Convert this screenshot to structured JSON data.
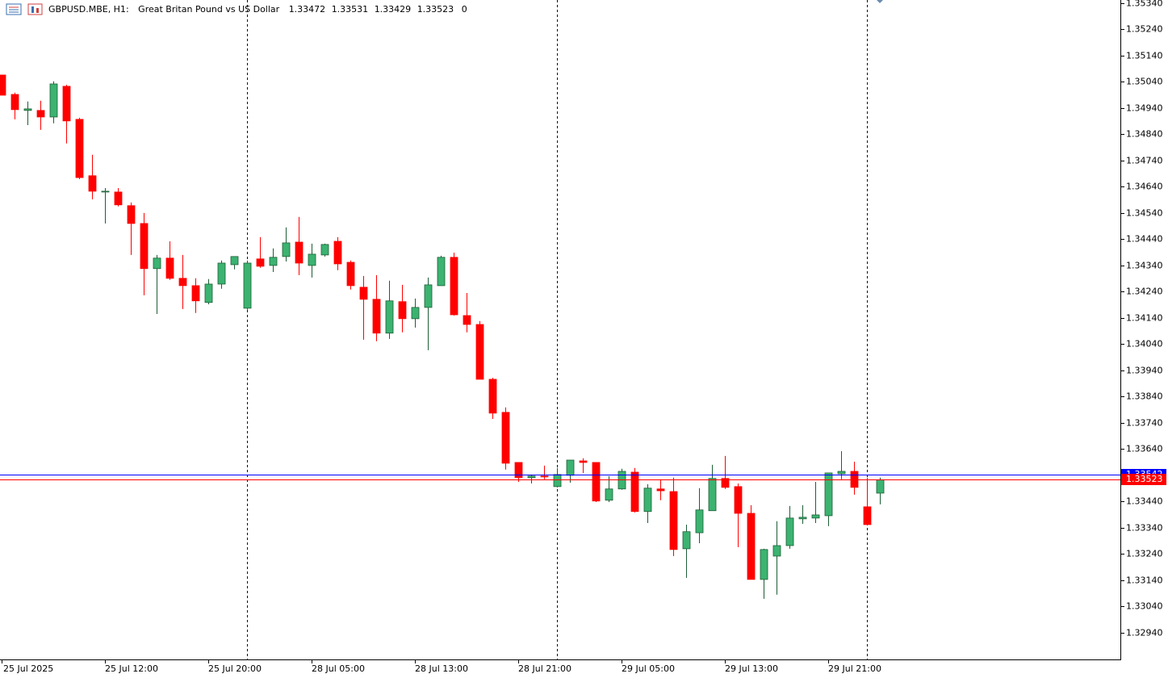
{
  "chart_data": {
    "type": "candlestick",
    "symbol": "GBPUSD.MBE, H1:",
    "description": "Great Britan Pound vs US Dollar",
    "header_suffix": "0",
    "categories": [
      "25 Jul 2025",
      null,
      null,
      null,
      null,
      null,
      null,
      null,
      "25 Jul 12:00",
      null,
      null,
      null,
      null,
      null,
      null,
      null,
      "25 Jul 20:00",
      null,
      null,
      null,
      null,
      null,
      null,
      null,
      "28 Jul 05:00",
      null,
      null,
      null,
      null,
      null,
      null,
      null,
      "28 Jul 13:00",
      null,
      null,
      null,
      null,
      null,
      null,
      null,
      "28 Jul 21:00",
      null,
      null,
      null,
      null,
      null,
      null,
      null,
      "29 Jul 05:00",
      null,
      null,
      null,
      null,
      null,
      null,
      null,
      "29 Jul 13:00",
      null,
      null,
      null,
      null,
      null,
      null,
      null,
      "29 Jul 21:00",
      null,
      null,
      null,
      null
    ],
    "open": [
      1.35066,
      1.34992,
      1.34931,
      1.34931,
      1.34906,
      1.35023,
      1.34897,
      1.34682,
      1.3462,
      1.3462,
      1.34568,
      1.345,
      1.34328,
      1.34368,
      1.34291,
      1.34263,
      1.34199,
      1.34269,
      1.34343,
      1.34177,
      1.34365,
      1.3434,
      1.34374,
      1.34429,
      1.3434,
      1.3438,
      1.34432,
      1.34352,
      1.34257,
      1.34211,
      1.34082,
      1.34202,
      1.34137,
      1.3418,
      1.34263,
      1.34371,
      1.34149,
      1.34115,
      1.33906,
      1.3378,
      1.33589,
      1.33531,
      1.33537,
      1.33497,
      1.3354,
      1.33595,
      1.33589,
      1.33445,
      1.33488,
      1.33552,
      1.33402,
      1.33488,
      1.33478,
      1.3326,
      1.33321,
      1.33405,
      1.33528,
      1.33497,
      1.33395,
      1.33143,
      1.33232,
      1.33272,
      1.33374,
      1.33377,
      1.33386,
      1.33546,
      1.33555,
      1.3342,
      1.33472
    ],
    "high": [
      1.35066,
      1.34999,
      1.34965,
      1.34968,
      1.35042,
      1.35029,
      1.34903,
      1.34762,
      1.34635,
      1.34635,
      1.3458,
      1.3454,
      1.3438,
      1.34432,
      1.3438,
      1.34291,
      1.34288,
      1.34359,
      1.34374,
      1.34359,
      1.34448,
      1.34405,
      1.34485,
      1.34525,
      1.34423,
      1.34423,
      1.34448,
      1.34359,
      1.343,
      1.34303,
      1.34282,
      1.34266,
      1.34214,
      1.34294,
      1.34377,
      1.34389,
      1.34235,
      1.34128,
      1.33912,
      1.33799,
      1.33589,
      1.33543,
      1.33577,
      1.33568,
      1.33598,
      1.33605,
      1.33589,
      1.33537,
      1.33565,
      1.33568,
      1.33506,
      1.33525,
      1.33531,
      1.33352,
      1.33491,
      1.3358,
      1.33614,
      1.33509,
      1.33426,
      1.3326,
      1.33365,
      1.33423,
      1.33426,
      1.33515,
      1.33549,
      1.33632,
      1.33592,
      1.33531,
      1.33531
    ],
    "low": [
      1.34989,
      1.34897,
      1.34875,
      1.34857,
      1.34882,
      1.34805,
      1.34669,
      1.34592,
      1.345,
      1.34565,
      1.3438,
      1.34226,
      1.34155,
      1.34285,
      1.34174,
      1.34159,
      1.34192,
      1.34251,
      1.34325,
      1.34171,
      1.34331,
      1.34315,
      1.34355,
      1.34303,
      1.34294,
      1.34374,
      1.34322,
      1.34248,
      1.34057,
      1.34051,
      1.3406,
      1.34085,
      1.34103,
      1.34017,
      1.34263,
      1.34149,
      1.34085,
      1.33906,
      1.33755,
      1.33562,
      1.33515,
      1.33509,
      1.33525,
      1.33494,
      1.33512,
      1.33549,
      1.33438,
      1.33438,
      1.33485,
      1.33398,
      1.33358,
      1.33445,
      1.33232,
      1.33149,
      1.33281,
      1.33405,
      1.33488,
      1.33266,
      1.33143,
      1.33069,
      1.33085,
      1.3326,
      1.33355,
      1.33358,
      1.33346,
      1.33525,
      1.33466,
      1.33349,
      1.33429
    ],
    "close": [
      1.34989,
      1.34934,
      1.34937,
      1.34906,
      1.35032,
      1.34891,
      1.34675,
      1.34623,
      1.34623,
      1.34571,
      1.345,
      1.34328,
      1.34368,
      1.34291,
      1.34263,
      1.34205,
      1.34269,
      1.34349,
      1.34374,
      1.34349,
      1.34337,
      1.34371,
      1.34426,
      1.34349,
      1.34383,
      1.3442,
      1.34346,
      1.34263,
      1.34211,
      1.34082,
      1.34205,
      1.34137,
      1.3418,
      1.34266,
      1.34371,
      1.34152,
      1.34115,
      1.33906,
      1.33777,
      1.33586,
      1.33531,
      1.33537,
      1.33534,
      1.33543,
      1.33598,
      1.33589,
      1.33442,
      1.33488,
      1.33555,
      1.33402,
      1.33491,
      1.33481,
      1.33257,
      1.33325,
      1.33408,
      1.33528,
      1.33494,
      1.33395,
      1.33143,
      1.33257,
      1.33272,
      1.33377,
      1.3338,
      1.33389,
      1.33549,
      1.33555,
      1.33494,
      1.33352,
      1.33523
    ],
    "up_color": "#3cb371",
    "down_color": "#ff0000",
    "period_separators": [
      19,
      43,
      67
    ],
    "price_lines": [
      {
        "value": 1.33542,
        "color": "#0000ff"
      },
      {
        "value": 1.33523,
        "color": "#ff0000"
      }
    ],
    "ylim": [
      1.32838,
      1.35352
    ],
    "yticks": [
      {
        "value": 1.3534,
        "label": "1.35340"
      },
      {
        "value": 1.3524,
        "label": "1.35240"
      },
      {
        "value": 1.3514,
        "label": "1.35140"
      },
      {
        "value": 1.3504,
        "label": "1.35040"
      },
      {
        "value": 1.3494,
        "label": "1.34940"
      },
      {
        "value": 1.3484,
        "label": "1.34840"
      },
      {
        "value": 1.3474,
        "label": "1.34740"
      },
      {
        "value": 1.3464,
        "label": "1.34640"
      },
      {
        "value": 1.3454,
        "label": "1.34540"
      },
      {
        "value": 1.3444,
        "label": "1.34440"
      },
      {
        "value": 1.3434,
        "label": "1.34340"
      },
      {
        "value": 1.3424,
        "label": "1.34240"
      },
      {
        "value": 1.3414,
        "label": "1.34140"
      },
      {
        "value": 1.3404,
        "label": "1.34040"
      },
      {
        "value": 1.3394,
        "label": "1.33940"
      },
      {
        "value": 1.3384,
        "label": "1.33840"
      },
      {
        "value": 1.3374,
        "label": "1.33740"
      },
      {
        "value": 1.3364,
        "label": "1.33640"
      },
      {
        "value": 1.3344,
        "label": "1.33440"
      },
      {
        "value": 1.3334,
        "label": "1.33340"
      },
      {
        "value": 1.3324,
        "label": "1.33240"
      },
      {
        "value": 1.3314,
        "label": "1.33140"
      },
      {
        "value": 1.3304,
        "label": "1.33040"
      },
      {
        "value": 1.3294,
        "label": "1.32940"
      }
    ]
  }
}
